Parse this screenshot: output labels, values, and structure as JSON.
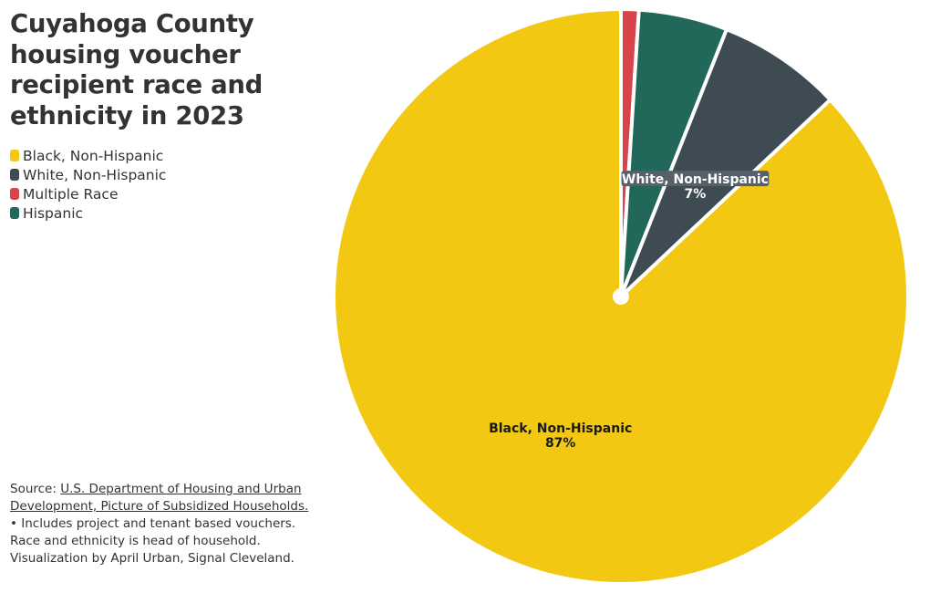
{
  "title": "Cuyahoga County housing voucher recipient race and ethnicity in 2023",
  "legend": [
    {
      "label": "Black, Non-Hispanic",
      "color": "#f2c813"
    },
    {
      "label": "White, Non-Hispanic",
      "color": "#3e4b52"
    },
    {
      "label": "Multiple Race",
      "color": "#d9444a"
    },
    {
      "label": "Hispanic",
      "color": "#22685a"
    }
  ],
  "footer": {
    "source_prefix": "Source: ",
    "source_link": "U.S. Department of Housing and Urban Development, Picture of Subsidized Households. ",
    "note": "• Includes project and tenant based vouchers. Race and ethnicity is head of household.",
    "credit": "Visualization by April Urban, Signal Cleveland."
  },
  "chart_data": {
    "type": "pie",
    "title": "Cuyahoga County housing voucher recipient race and ethnicity in 2023",
    "slices": [
      {
        "label": "Multiple Race",
        "value": 1,
        "color": "#d9444a",
        "data_label": null
      },
      {
        "label": "Hispanic",
        "value": 5,
        "color": "#22685a",
        "data_label": null
      },
      {
        "label": "White, Non-Hispanic",
        "value": 7,
        "color": "#3e4b52",
        "data_label": "White, Non-Hispanic",
        "data_value": "7%"
      },
      {
        "label": "Black, Non-Hispanic",
        "value": 87,
        "color": "#f2c813",
        "data_label": "Black, Non-Hispanic",
        "data_value": "87%"
      }
    ],
    "legend_position": "top-left"
  }
}
